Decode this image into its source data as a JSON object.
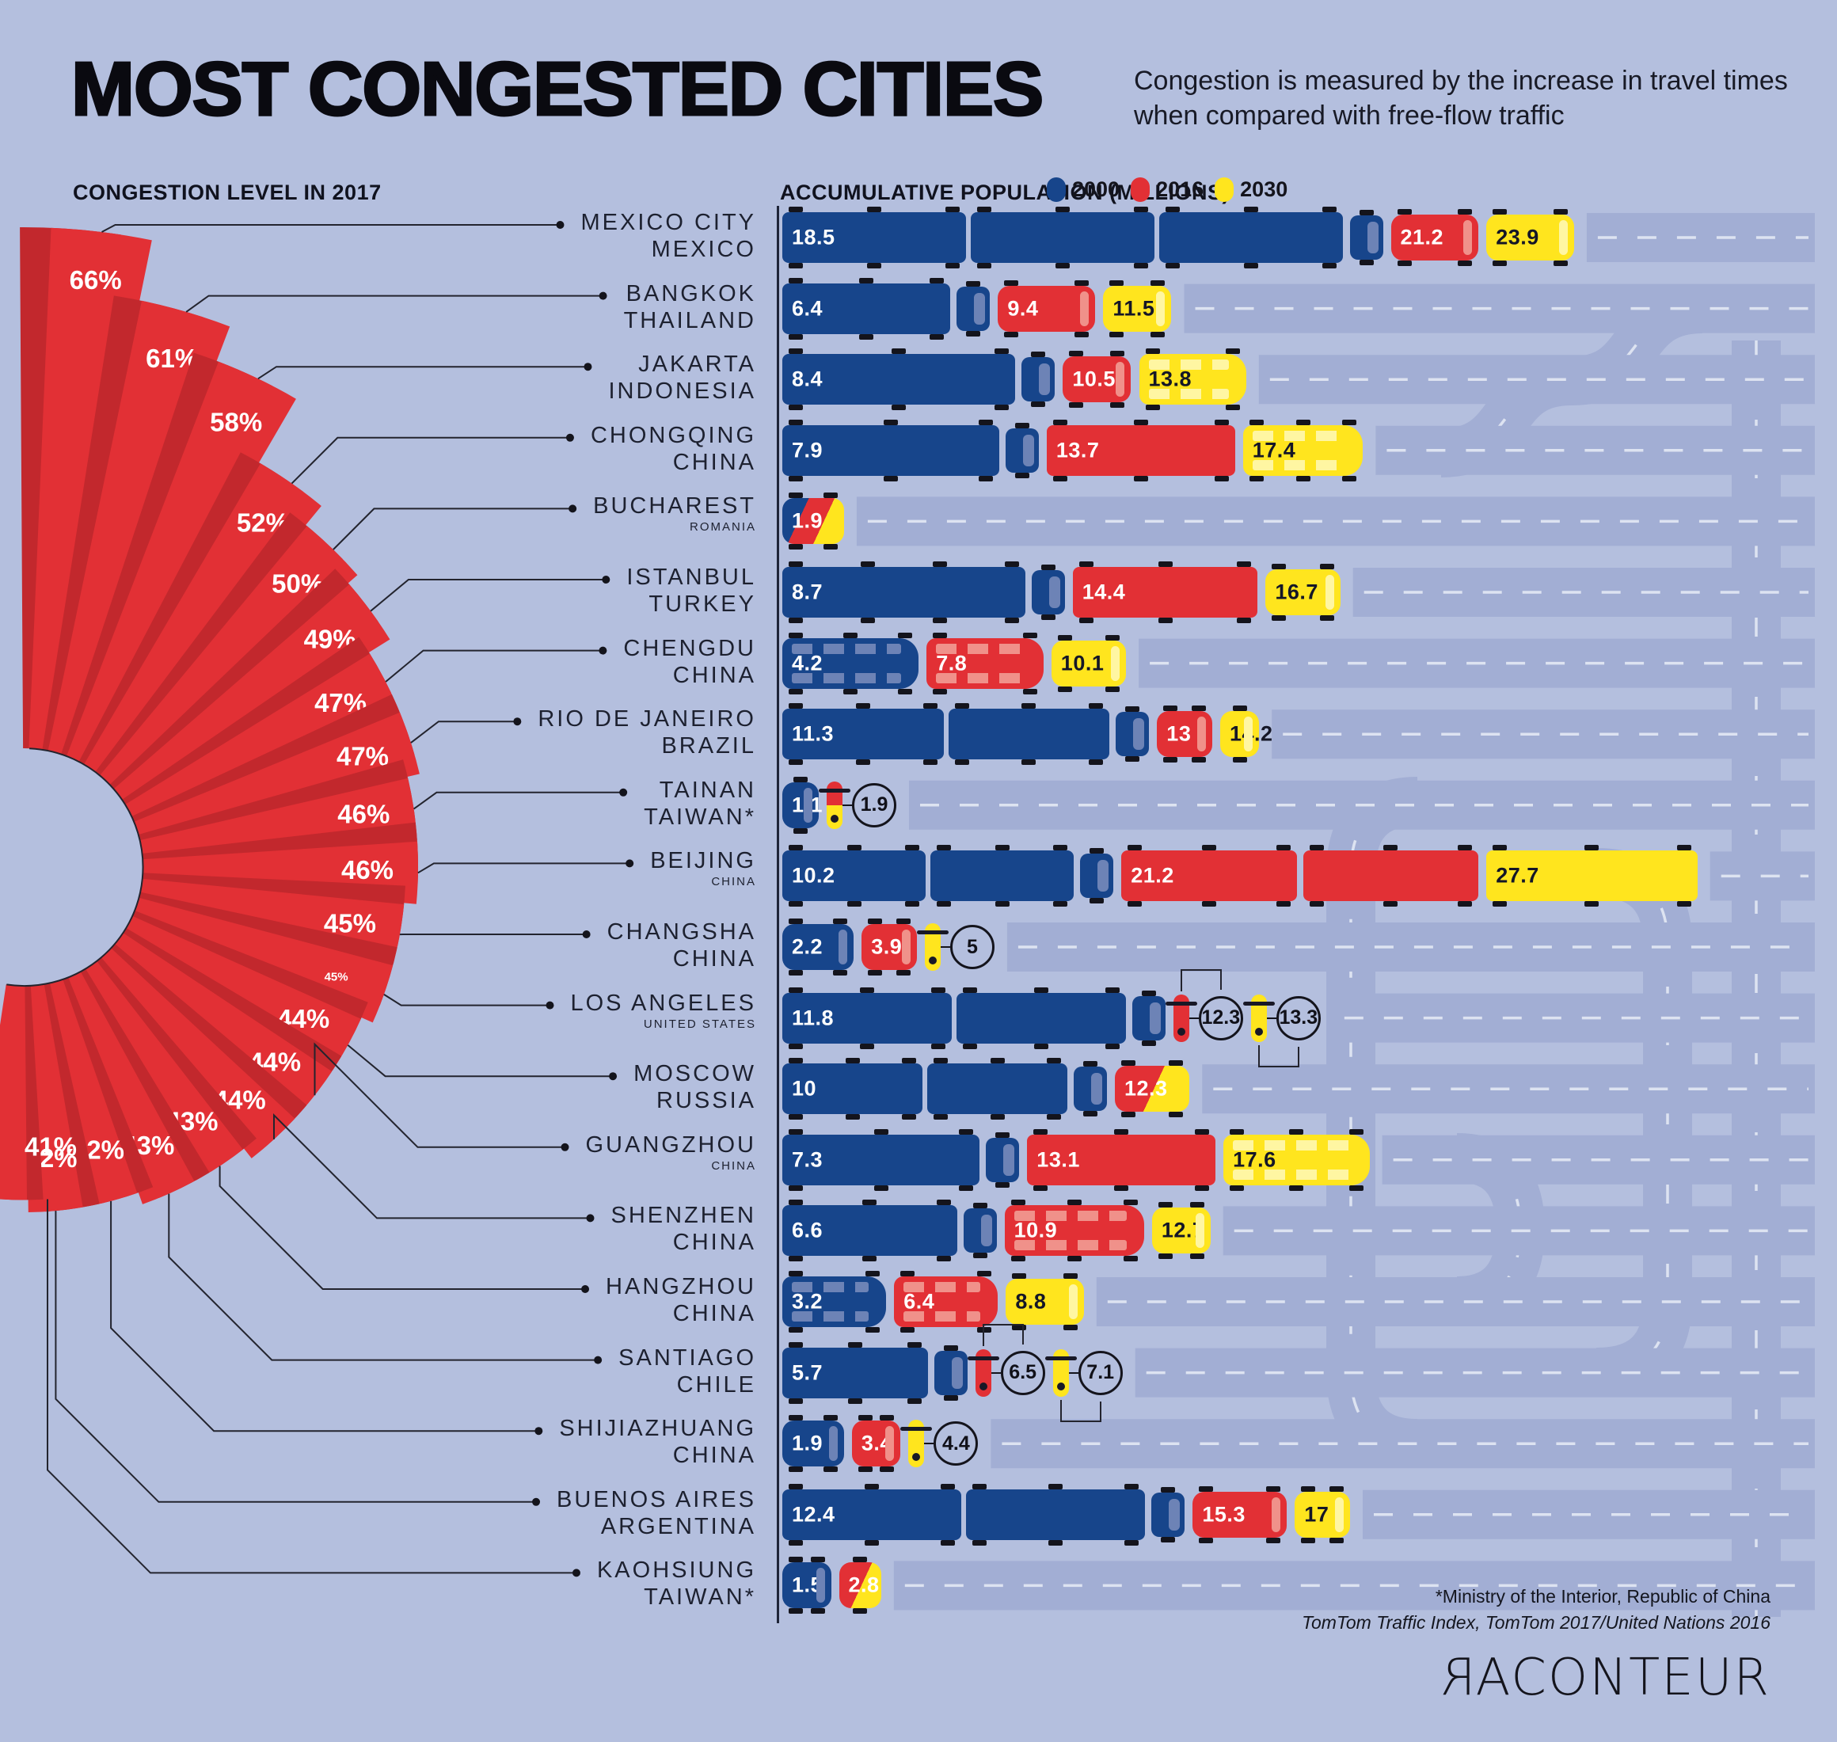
{
  "header": {
    "title": "MOST CONGESTED CITIES",
    "subtitle": "Congestion is measured by the increase in travel times when compared with free-flow traffic"
  },
  "panel_labels": {
    "left": "CONGESTION LEVEL IN 2017",
    "right": "ACCUMULATIVE POPULATION (MILLIONS)"
  },
  "legend": [
    {
      "label": "2000",
      "color": "#17458b"
    },
    {
      "label": "2016",
      "color": "#e23035"
    },
    {
      "label": "2030",
      "color": "#ffe51e"
    }
  ],
  "colors": {
    "background": "#b4bfde",
    "road": "#a2aed4",
    "road_dash": "#dde3f1",
    "fan_red": "#e23035",
    "fan_red_shadow": "#c2282d",
    "navy": "#17458b",
    "red": "#e23035",
    "yellow": "#ffe51e",
    "line": "#23242e"
  },
  "footer": {
    "source1": "*Ministry of the Interior, Republic of China",
    "source2": "TomTom Traffic Index, TomTom 2017/United Nations 2016",
    "logo": "RACONTEUR"
  },
  "chart_data": [
    {
      "type": "radial_fan",
      "title": "CONGESTION LEVEL IN 2017",
      "unit": "percent increase in travel time vs free-flow",
      "wedges": [
        {
          "city": "Mexico City",
          "pct": 66
        },
        {
          "city": "Bangkok",
          "pct": 61
        },
        {
          "city": "Jakarta",
          "pct": 58
        },
        {
          "city": "Chongqing",
          "pct": 52
        },
        {
          "city": "Bucharest",
          "pct": 50
        },
        {
          "city": "Istanbul",
          "pct": 49
        },
        {
          "city": "Chengdu",
          "pct": 47
        },
        {
          "city": "Rio de Janeiro",
          "pct": 47
        },
        {
          "city": "Tainan",
          "pct": 46
        },
        {
          "city": "Beijing",
          "pct": 46
        },
        {
          "city": "Changsha",
          "pct": 45
        },
        {
          "city": "Los Angeles",
          "pct": 45
        },
        {
          "city": "Moscow",
          "pct": 44
        },
        {
          "city": "Guangzhou",
          "pct": 44
        },
        {
          "city": "Shenzhen",
          "pct": 44
        },
        {
          "city": "Hangzhou",
          "pct": 43
        },
        {
          "city": "Santiago",
          "pct": 43
        },
        {
          "city": "Shijiazhuang",
          "pct": 42
        },
        {
          "city": "Buenos Aires",
          "pct": 42
        },
        {
          "city": "Kaohsiung",
          "pct": 41
        }
      ]
    },
    {
      "type": "vehicle_bar",
      "title": "ACCUMULATIVE POPULATION (MILLIONS)",
      "years": [
        "2000",
        "2016",
        "2030"
      ],
      "rows": [
        {
          "name": "MEXICO CITY",
          "country": "MEXICO",
          "country_small": false,
          "congestion_pct": 66,
          "pct_label_small": false,
          "values": [
            18.5,
            21.2,
            23.9
          ],
          "labels": [
            "18.5",
            "21.2",
            "23.9"
          ],
          "vehicles": [
            "truck",
            "car",
            "car"
          ],
          "circled": [
            false,
            false,
            false
          ],
          "combined": null
        },
        {
          "name": "BANGKOK",
          "country": "THAILAND",
          "country_small": false,
          "congestion_pct": 61,
          "pct_label_small": false,
          "values": [
            6.4,
            9.4,
            11.5
          ],
          "labels": [
            "6.4",
            "9.4",
            "11.5"
          ],
          "vehicles": [
            "truck",
            "car",
            "car"
          ],
          "circled": [
            false,
            false,
            false
          ],
          "combined": null
        },
        {
          "name": "JAKARTA",
          "country": "INDONESIA",
          "country_small": false,
          "congestion_pct": 58,
          "pct_label_small": false,
          "values": [
            8.4,
            10.5,
            13.8
          ],
          "labels": [
            "8.4",
            "10.5",
            "13.8"
          ],
          "vehicles": [
            "truck",
            "car",
            "bus"
          ],
          "circled": [
            false,
            false,
            false
          ],
          "combined": null
        },
        {
          "name": "CHONGQING",
          "country": "CHINA",
          "country_small": false,
          "congestion_pct": 52,
          "pct_label_small": false,
          "values": [
            7.9,
            13.7,
            17.4
          ],
          "labels": [
            "7.9",
            "13.7",
            "17.4"
          ],
          "vehicles": [
            "truck",
            "truck",
            "bus"
          ],
          "circled": [
            false,
            false,
            false
          ],
          "combined": null
        },
        {
          "name": "BUCHAREST",
          "country": "ROMANIA",
          "country_small": true,
          "congestion_pct": 50,
          "pct_label_small": false,
          "values": [
            1.9
          ],
          "labels": [
            "1.9"
          ],
          "vehicles": [
            "car"
          ],
          "circled": [
            false
          ],
          "combined": "all"
        },
        {
          "name": "ISTANBUL",
          "country": "TURKEY",
          "country_small": false,
          "congestion_pct": 49,
          "pct_label_small": false,
          "values": [
            8.7,
            14.4,
            16.7
          ],
          "labels": [
            "8.7",
            "14.4",
            "16.7"
          ],
          "vehicles": [
            "truck",
            "truck",
            "car"
          ],
          "circled": [
            false,
            false,
            false
          ],
          "combined": null
        },
        {
          "name": "CHENGDU",
          "country": "CHINA",
          "country_small": false,
          "congestion_pct": 47,
          "pct_label_small": false,
          "values": [
            4.2,
            7.8,
            10.1
          ],
          "labels": [
            "4.2",
            "7.8",
            "10.1"
          ],
          "vehicles": [
            "bus",
            "bus",
            "car"
          ],
          "circled": [
            false,
            false,
            false
          ],
          "combined": null
        },
        {
          "name": "RIO DE JANEIRO",
          "country": "BRAZIL",
          "country_small": false,
          "congestion_pct": 47,
          "pct_label_small": false,
          "values": [
            11.3,
            13,
            14.2
          ],
          "labels": [
            "11.3",
            "13",
            "14.2"
          ],
          "vehicles": [
            "truck",
            "car",
            "car"
          ],
          "circled": [
            false,
            false,
            false
          ],
          "combined": null
        },
        {
          "name": "TAINAN",
          "country": "TAIWAN*",
          "country_small": false,
          "congestion_pct": 46,
          "pct_label_small": false,
          "values": [
            1.1,
            1.9
          ],
          "labels": [
            "1.1",
            "1.9"
          ],
          "vehicles": [
            "car",
            "moto"
          ],
          "circled": [
            false,
            true
          ],
          "combined": "latter2"
        },
        {
          "name": "BEIJING",
          "country": "CHINA",
          "country_small": true,
          "congestion_pct": 46,
          "pct_label_small": false,
          "values": [
            10.2,
            21.2,
            27.7
          ],
          "labels": [
            "10.2",
            "21.2",
            "27.7"
          ],
          "vehicles": [
            "truck",
            "truck",
            "truck"
          ],
          "circled": [
            false,
            false,
            false
          ],
          "combined": null
        },
        {
          "name": "CHANGSHA",
          "country": "CHINA",
          "country_small": false,
          "congestion_pct": 45,
          "pct_label_small": false,
          "values": [
            2.2,
            3.9,
            5
          ],
          "labels": [
            "2.2",
            "3.9",
            "5"
          ],
          "vehicles": [
            "car",
            "car",
            "moto"
          ],
          "circled": [
            false,
            false,
            true
          ],
          "combined": null
        },
        {
          "name": "LOS ANGELES",
          "country": "UNITED STATES",
          "country_small": true,
          "congestion_pct": 45,
          "pct_label_small": true,
          "values": [
            11.8,
            12.3,
            13.3
          ],
          "labels": [
            "11.8",
            "12.3",
            "13.3"
          ],
          "vehicles": [
            "truck",
            "moto",
            "moto"
          ],
          "circled": [
            false,
            true,
            true
          ],
          "combined": null
        },
        {
          "name": "MOSCOW",
          "country": "RUSSIA",
          "country_small": false,
          "congestion_pct": 44,
          "pct_label_small": false,
          "values": [
            10,
            12.3
          ],
          "labels": [
            "10",
            "12.3"
          ],
          "vehicles": [
            "truck",
            "car"
          ],
          "circled": [
            false,
            false
          ],
          "combined": "latter2"
        },
        {
          "name": "GUANGZHOU",
          "country": "CHINA",
          "country_small": true,
          "congestion_pct": 44,
          "pct_label_small": false,
          "values": [
            7.3,
            13.1,
            17.6
          ],
          "labels": [
            "7.3",
            "13.1",
            "17.6"
          ],
          "vehicles": [
            "truck",
            "truck",
            "bus"
          ],
          "circled": [
            false,
            false,
            false
          ],
          "combined": null
        },
        {
          "name": "SHENZHEN",
          "country": "CHINA",
          "country_small": false,
          "congestion_pct": 44,
          "pct_label_small": false,
          "values": [
            6.6,
            10.9,
            12.7
          ],
          "labels": [
            "6.6",
            "10.9",
            "12.7"
          ],
          "vehicles": [
            "truck",
            "bus",
            "car"
          ],
          "circled": [
            false,
            false,
            false
          ],
          "combined": null
        },
        {
          "name": "HANGZHOU",
          "country": "CHINA",
          "country_small": false,
          "congestion_pct": 43,
          "pct_label_small": false,
          "values": [
            3.2,
            6.4,
            8.8
          ],
          "labels": [
            "3.2",
            "6.4",
            "8.8"
          ],
          "vehicles": [
            "bus",
            "bus",
            "car"
          ],
          "circled": [
            false,
            false,
            false
          ],
          "combined": null
        },
        {
          "name": "SANTIAGO",
          "country": "CHILE",
          "country_small": false,
          "congestion_pct": 43,
          "pct_label_small": false,
          "values": [
            5.7,
            6.5,
            7.1
          ],
          "labels": [
            "5.7",
            "6.5",
            "7.1"
          ],
          "vehicles": [
            "truck",
            "moto",
            "moto"
          ],
          "circled": [
            false,
            true,
            true
          ],
          "combined": null
        },
        {
          "name": "SHIJIAZHUANG",
          "country": "CHINA",
          "country_small": false,
          "congestion_pct": 42,
          "pct_label_small": false,
          "values": [
            1.9,
            3.4,
            4.4
          ],
          "labels": [
            "1.9",
            "3.4",
            "4.4"
          ],
          "vehicles": [
            "car",
            "car",
            "moto"
          ],
          "circled": [
            false,
            false,
            true
          ],
          "combined": null
        },
        {
          "name": "BUENOS AIRES",
          "country": "ARGENTINA",
          "country_small": false,
          "congestion_pct": 42,
          "pct_label_small": false,
          "values": [
            12.4,
            15.3,
            17
          ],
          "labels": [
            "12.4",
            "15.3",
            "17"
          ],
          "vehicles": [
            "truck",
            "car",
            "car"
          ],
          "circled": [
            false,
            false,
            false
          ],
          "combined": null
        },
        {
          "name": "KAOHSIUNG",
          "country": "TAIWAN*",
          "country_small": false,
          "congestion_pct": 41,
          "pct_label_small": false,
          "values": [
            1.5,
            2.8
          ],
          "labels": [
            "1.5",
            "2.8"
          ],
          "vehicles": [
            "car",
            "car"
          ],
          "circled": [
            false,
            false
          ],
          "combined": "latter2"
        }
      ]
    }
  ]
}
